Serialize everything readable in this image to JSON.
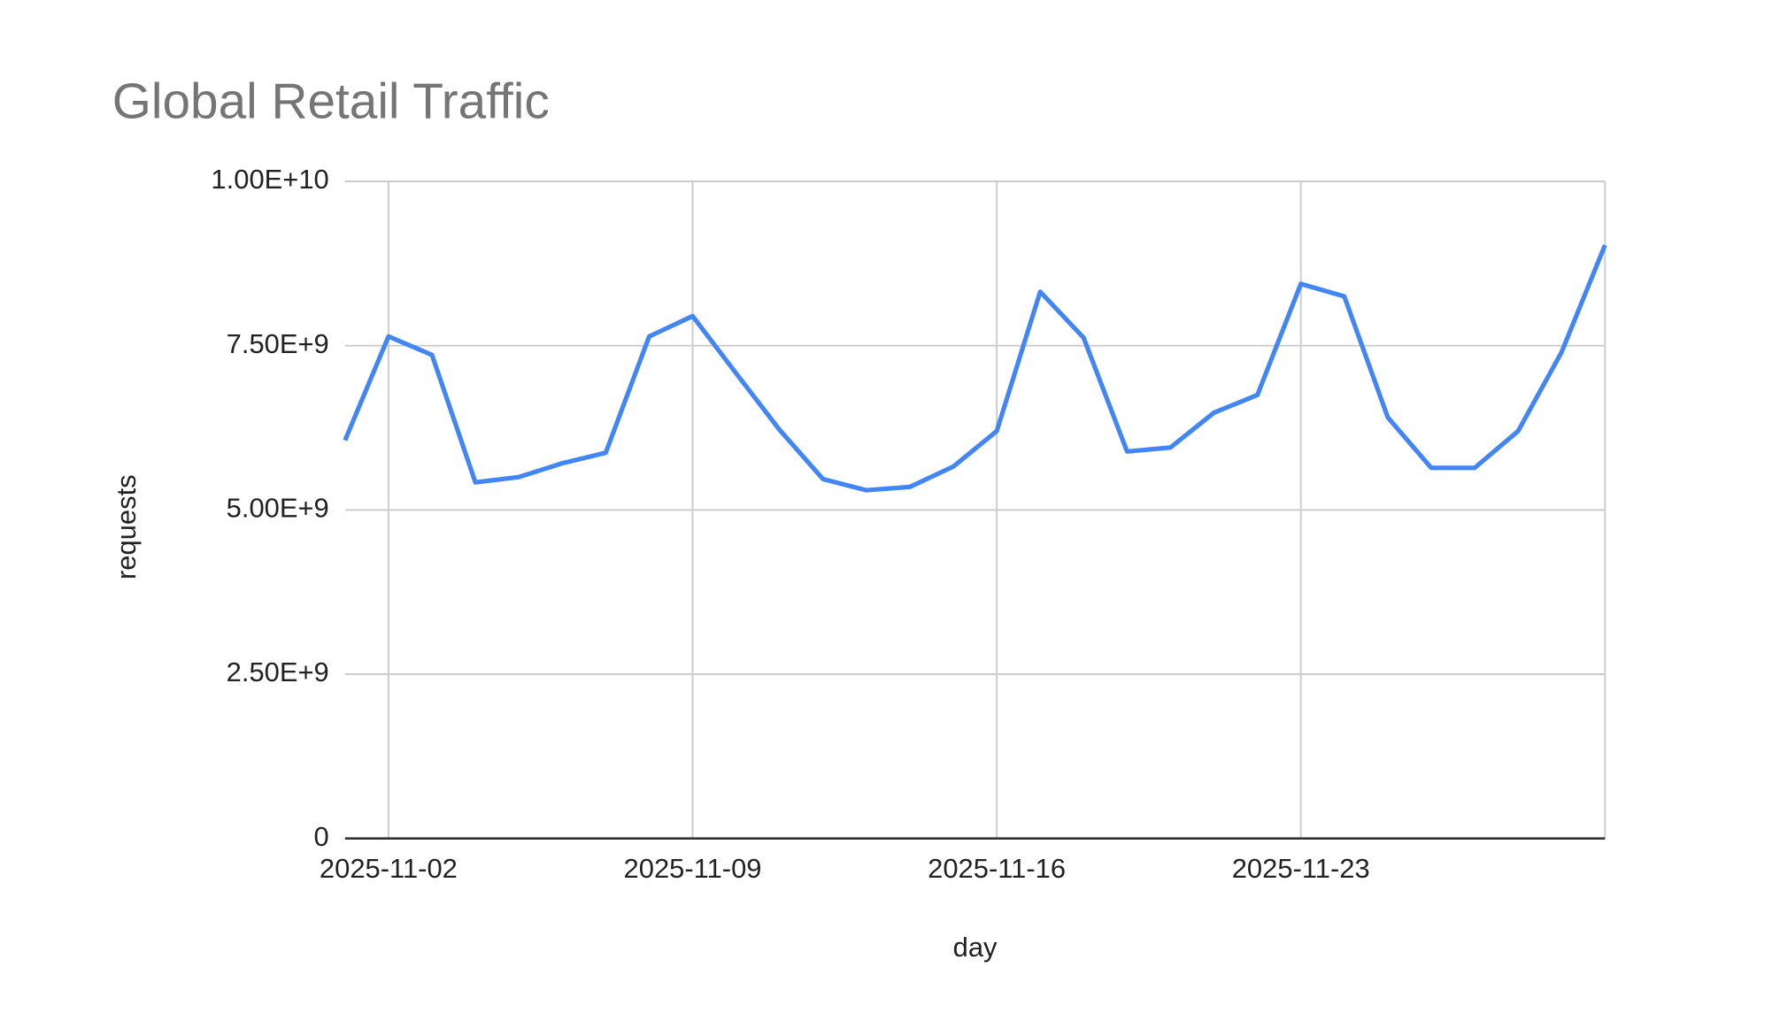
{
  "chart_data": {
    "type": "line",
    "title": "Global Retail Traffic",
    "x_label": "day",
    "y_label": "requests",
    "x": [
      "2025-11-01",
      "2025-11-02",
      "2025-11-03",
      "2025-11-04",
      "2025-11-05",
      "2025-11-06",
      "2025-11-07",
      "2025-11-08",
      "2025-11-09",
      "2025-11-10",
      "2025-11-11",
      "2025-11-12",
      "2025-11-13",
      "2025-11-14",
      "2025-11-15",
      "2025-11-16",
      "2025-11-17",
      "2025-11-18",
      "2025-11-19",
      "2025-11-20",
      "2025-11-21",
      "2025-11-22",
      "2025-11-23",
      "2025-11-24",
      "2025-11-25",
      "2025-11-26",
      "2025-11-27",
      "2025-11-28",
      "2025-11-29",
      "2025-11-30"
    ],
    "series": [
      {
        "name": "requests",
        "color": "#4285f4",
        "values": [
          6060000000,
          7640000000,
          7360000000,
          5420000000,
          5500000000,
          5710000000,
          5870000000,
          7640000000,
          7950000000,
          7080000000,
          6220000000,
          5470000000,
          5300000000,
          5350000000,
          5660000000,
          6200000000,
          8320000000,
          7620000000,
          5890000000,
          5950000000,
          6480000000,
          6750000000,
          8440000000,
          8250000000,
          6410000000,
          5640000000,
          5640000000,
          6200000000,
          7400000000,
          9030000000
        ]
      }
    ],
    "xlim": [
      "2025-11-01",
      "2025-11-30"
    ],
    "xticks": [
      "2025-11-02",
      "2025-11-09",
      "2025-11-16",
      "2025-11-23"
    ],
    "ylim": [
      0,
      10000000000
    ],
    "yticks": [
      0,
      {
        "value": 2500000000,
        "label": "2.50E+9"
      },
      {
        "value": 5000000000,
        "label": "5.00E+9"
      },
      {
        "value": 7500000000,
        "label": "7.50E+9"
      },
      {
        "value": 10000000000,
        "label": "1.00E+10"
      }
    ],
    "grid": true
  }
}
